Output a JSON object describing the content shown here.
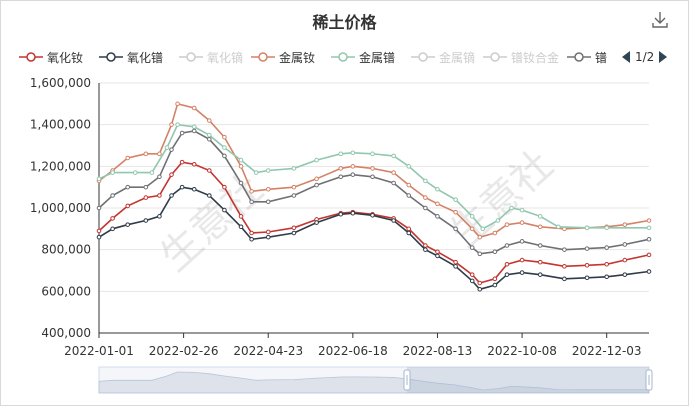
{
  "title": "稀土价格",
  "watermark": "生意社",
  "legend": {
    "page_label": "1/2",
    "items": [
      {
        "name": "氧化钕",
        "color": "#c23531",
        "active": true
      },
      {
        "name": "氧化镨",
        "color": "#2f3c48",
        "active": true
      },
      {
        "name": "氧化镝",
        "color": "#cccccc",
        "active": false
      },
      {
        "name": "金属钕",
        "color": "#d48265",
        "active": true
      },
      {
        "name": "金属镨",
        "color": "#91c7ae",
        "active": true
      },
      {
        "name": "金属镝",
        "color": "#cccccc",
        "active": false
      },
      {
        "name": "镨钕合金",
        "color": "#cccccc",
        "active": false
      },
      {
        "name": "镨",
        "color": "#6e7074",
        "active": true
      }
    ]
  },
  "icons": {
    "download": "download-icon",
    "prev": "triangle-left-icon",
    "next": "triangle-right-icon"
  },
  "chart_data": {
    "type": "line",
    "title": "稀土价格",
    "x_tick_labels": [
      "2022-01-01",
      "2022-02-26",
      "2022-04-23",
      "2022-06-18",
      "2022-08-13",
      "2022-10-08",
      "2022-12-03"
    ],
    "x_range": [
      "2022-01-01",
      "2022-12-31"
    ],
    "ylim": [
      400000,
      1600000
    ],
    "y_ticks": [
      400000,
      600000,
      800000,
      1000000,
      1200000,
      1400000,
      1600000
    ],
    "y_tick_labels": [
      "400,000",
      "600,000",
      "800,000",
      "1,000,000",
      "1,200,000",
      "1,400,000",
      "1,600,000"
    ],
    "grid": {
      "horizontal": true,
      "vertical": false
    },
    "legend_position": "top",
    "series": [
      {
        "name": "金属钕",
        "color": "#d48265",
        "points": [
          [
            "2022-01-01",
            1130000
          ],
          [
            "2022-01-10",
            1180000
          ],
          [
            "2022-01-20",
            1240000
          ],
          [
            "2022-02-01",
            1260000
          ],
          [
            "2022-02-10",
            1260000
          ],
          [
            "2022-02-18",
            1400000
          ],
          [
            "2022-02-22",
            1500000
          ],
          [
            "2022-03-05",
            1480000
          ],
          [
            "2022-03-15",
            1420000
          ],
          [
            "2022-03-25",
            1340000
          ],
          [
            "2022-04-05",
            1200000
          ],
          [
            "2022-04-12",
            1080000
          ],
          [
            "2022-04-23",
            1090000
          ],
          [
            "2022-05-10",
            1100000
          ],
          [
            "2022-05-25",
            1140000
          ],
          [
            "2022-06-10",
            1190000
          ],
          [
            "2022-06-18",
            1200000
          ],
          [
            "2022-07-01",
            1190000
          ],
          [
            "2022-07-15",
            1170000
          ],
          [
            "2022-07-25",
            1110000
          ],
          [
            "2022-08-05",
            1050000
          ],
          [
            "2022-08-13",
            1020000
          ],
          [
            "2022-08-25",
            980000
          ],
          [
            "2022-09-05",
            900000
          ],
          [
            "2022-09-10",
            860000
          ],
          [
            "2022-09-20",
            880000
          ],
          [
            "2022-09-28",
            920000
          ],
          [
            "2022-10-08",
            930000
          ],
          [
            "2022-10-20",
            910000
          ],
          [
            "2022-11-05",
            900000
          ],
          [
            "2022-11-20",
            905000
          ],
          [
            "2022-12-03",
            910000
          ],
          [
            "2022-12-15",
            920000
          ],
          [
            "2022-12-31",
            940000
          ]
        ]
      },
      {
        "name": "金属镨",
        "color": "#91c7ae",
        "points": [
          [
            "2022-01-01",
            1140000
          ],
          [
            "2022-01-10",
            1170000
          ],
          [
            "2022-01-25",
            1170000
          ],
          [
            "2022-02-05",
            1170000
          ],
          [
            "2022-02-15",
            1290000
          ],
          [
            "2022-02-22",
            1400000
          ],
          [
            "2022-03-05",
            1390000
          ],
          [
            "2022-03-15",
            1350000
          ],
          [
            "2022-03-25",
            1290000
          ],
          [
            "2022-04-05",
            1230000
          ],
          [
            "2022-04-15",
            1170000
          ],
          [
            "2022-04-23",
            1180000
          ],
          [
            "2022-05-10",
            1190000
          ],
          [
            "2022-05-25",
            1230000
          ],
          [
            "2022-06-10",
            1260000
          ],
          [
            "2022-06-18",
            1265000
          ],
          [
            "2022-07-01",
            1260000
          ],
          [
            "2022-07-15",
            1250000
          ],
          [
            "2022-07-25",
            1200000
          ],
          [
            "2022-08-05",
            1130000
          ],
          [
            "2022-08-13",
            1090000
          ],
          [
            "2022-08-25",
            1040000
          ],
          [
            "2022-09-05",
            960000
          ],
          [
            "2022-09-12",
            900000
          ],
          [
            "2022-09-22",
            940000
          ],
          [
            "2022-10-01",
            1000000
          ],
          [
            "2022-10-08",
            990000
          ],
          [
            "2022-10-20",
            960000
          ],
          [
            "2022-11-01",
            910000
          ],
          [
            "2022-11-20",
            905000
          ],
          [
            "2022-12-03",
            905000
          ],
          [
            "2022-12-31",
            905000
          ]
        ]
      },
      {
        "name": "镨",
        "color": "#6e7074",
        "points": [
          [
            "2022-01-01",
            1000000
          ],
          [
            "2022-01-10",
            1060000
          ],
          [
            "2022-01-20",
            1100000
          ],
          [
            "2022-02-01",
            1100000
          ],
          [
            "2022-02-10",
            1150000
          ],
          [
            "2022-02-18",
            1280000
          ],
          [
            "2022-02-25",
            1360000
          ],
          [
            "2022-03-05",
            1370000
          ],
          [
            "2022-03-15",
            1330000
          ],
          [
            "2022-03-25",
            1250000
          ],
          [
            "2022-04-05",
            1120000
          ],
          [
            "2022-04-12",
            1030000
          ],
          [
            "2022-04-23",
            1030000
          ],
          [
            "2022-05-10",
            1060000
          ],
          [
            "2022-05-25",
            1110000
          ],
          [
            "2022-06-10",
            1150000
          ],
          [
            "2022-06-18",
            1160000
          ],
          [
            "2022-07-01",
            1150000
          ],
          [
            "2022-07-15",
            1120000
          ],
          [
            "2022-07-25",
            1060000
          ],
          [
            "2022-08-05",
            1000000
          ],
          [
            "2022-08-13",
            960000
          ],
          [
            "2022-08-25",
            900000
          ],
          [
            "2022-09-05",
            810000
          ],
          [
            "2022-09-10",
            780000
          ],
          [
            "2022-09-20",
            790000
          ],
          [
            "2022-09-28",
            820000
          ],
          [
            "2022-10-08",
            840000
          ],
          [
            "2022-10-20",
            820000
          ],
          [
            "2022-11-05",
            800000
          ],
          [
            "2022-11-20",
            805000
          ],
          [
            "2022-12-03",
            810000
          ],
          [
            "2022-12-15",
            825000
          ],
          [
            "2022-12-31",
            850000
          ]
        ]
      },
      {
        "name": "氧化钕",
        "color": "#c23531",
        "points": [
          [
            "2022-01-01",
            890000
          ],
          [
            "2022-01-10",
            950000
          ],
          [
            "2022-01-20",
            1010000
          ],
          [
            "2022-02-01",
            1050000
          ],
          [
            "2022-02-10",
            1060000
          ],
          [
            "2022-02-18",
            1160000
          ],
          [
            "2022-02-25",
            1220000
          ],
          [
            "2022-03-05",
            1210000
          ],
          [
            "2022-03-15",
            1180000
          ],
          [
            "2022-03-25",
            1100000
          ],
          [
            "2022-04-05",
            960000
          ],
          [
            "2022-04-12",
            880000
          ],
          [
            "2022-04-23",
            885000
          ],
          [
            "2022-05-10",
            905000
          ],
          [
            "2022-05-25",
            945000
          ],
          [
            "2022-06-10",
            975000
          ],
          [
            "2022-06-18",
            980000
          ],
          [
            "2022-07-01",
            970000
          ],
          [
            "2022-07-15",
            950000
          ],
          [
            "2022-07-25",
            900000
          ],
          [
            "2022-08-05",
            820000
          ],
          [
            "2022-08-13",
            790000
          ],
          [
            "2022-08-25",
            740000
          ],
          [
            "2022-09-05",
            680000
          ],
          [
            "2022-09-10",
            640000
          ],
          [
            "2022-09-20",
            660000
          ],
          [
            "2022-09-28",
            730000
          ],
          [
            "2022-10-08",
            750000
          ],
          [
            "2022-10-20",
            740000
          ],
          [
            "2022-11-05",
            720000
          ],
          [
            "2022-11-20",
            725000
          ],
          [
            "2022-12-03",
            730000
          ],
          [
            "2022-12-15",
            750000
          ],
          [
            "2022-12-31",
            775000
          ]
        ]
      },
      {
        "name": "氧化镨",
        "color": "#2f3c48",
        "points": [
          [
            "2022-01-01",
            860000
          ],
          [
            "2022-01-10",
            900000
          ],
          [
            "2022-01-20",
            920000
          ],
          [
            "2022-02-01",
            940000
          ],
          [
            "2022-02-10",
            960000
          ],
          [
            "2022-02-18",
            1060000
          ],
          [
            "2022-02-25",
            1100000
          ],
          [
            "2022-03-05",
            1090000
          ],
          [
            "2022-03-15",
            1060000
          ],
          [
            "2022-03-25",
            990000
          ],
          [
            "2022-04-05",
            910000
          ],
          [
            "2022-04-12",
            850000
          ],
          [
            "2022-04-23",
            860000
          ],
          [
            "2022-05-10",
            880000
          ],
          [
            "2022-05-25",
            930000
          ],
          [
            "2022-06-10",
            970000
          ],
          [
            "2022-06-18",
            975000
          ],
          [
            "2022-07-01",
            965000
          ],
          [
            "2022-07-15",
            940000
          ],
          [
            "2022-07-25",
            880000
          ],
          [
            "2022-08-05",
            800000
          ],
          [
            "2022-08-13",
            770000
          ],
          [
            "2022-08-25",
            720000
          ],
          [
            "2022-09-05",
            650000
          ],
          [
            "2022-09-10",
            610000
          ],
          [
            "2022-09-20",
            630000
          ],
          [
            "2022-09-28",
            680000
          ],
          [
            "2022-10-08",
            690000
          ],
          [
            "2022-10-20",
            680000
          ],
          [
            "2022-11-05",
            660000
          ],
          [
            "2022-11-20",
            665000
          ],
          [
            "2022-12-03",
            670000
          ],
          [
            "2022-12-15",
            680000
          ],
          [
            "2022-12-31",
            695000
          ]
        ]
      }
    ]
  }
}
